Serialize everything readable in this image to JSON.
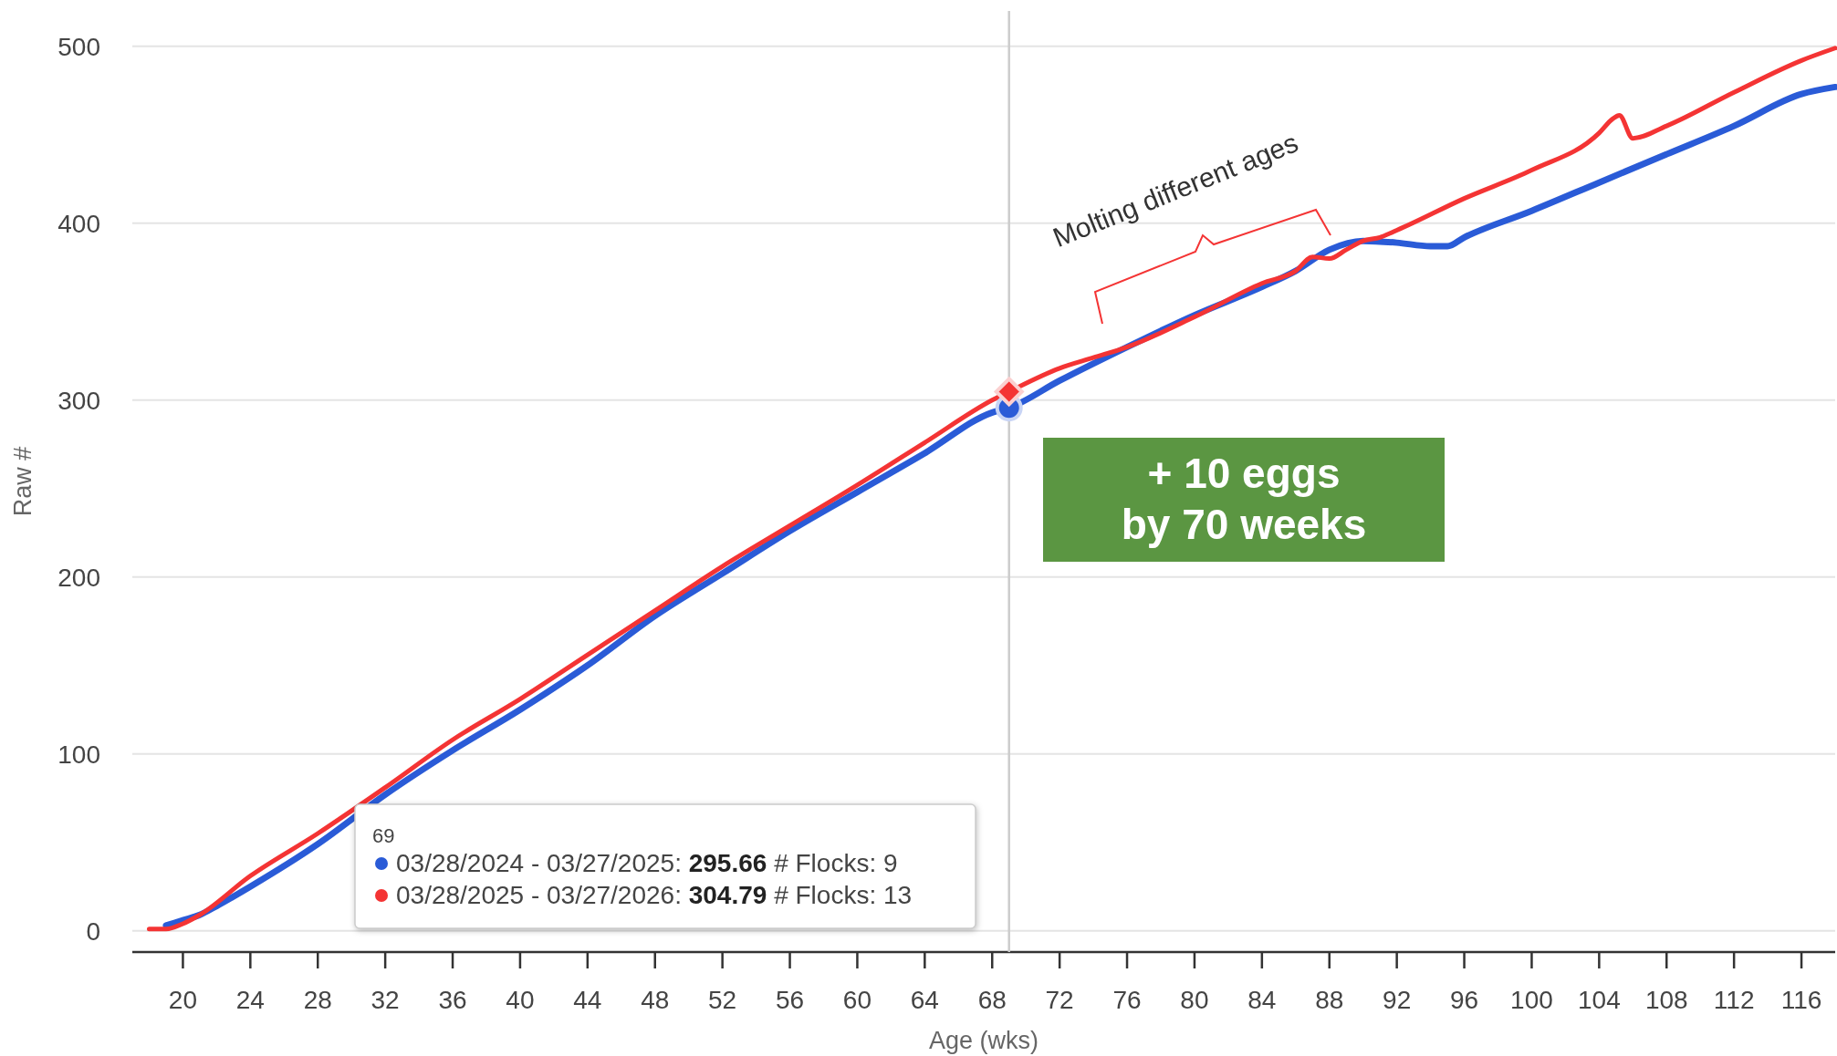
{
  "chart_data": {
    "type": "line",
    "xlabel": "Age (wks)",
    "ylabel": "Raw #",
    "xlim": [
      17,
      118
    ],
    "xticks": [
      20,
      24,
      28,
      32,
      36,
      40,
      44,
      48,
      52,
      56,
      60,
      64,
      68,
      72,
      76,
      80,
      84,
      88,
      92,
      96,
      100,
      104,
      108,
      112,
      116
    ],
    "ylim": [
      -12,
      520
    ],
    "yticks": [
      0,
      100,
      200,
      300,
      400,
      500
    ],
    "grid": "y",
    "line_style": "solid",
    "marker": "none",
    "series": [
      {
        "color": "#2a5bd7",
        "x": [
          19,
          20,
          21,
          22,
          24,
          28,
          32,
          36,
          40,
          44,
          48,
          52,
          56,
          60,
          64,
          68,
          69,
          72,
          76,
          80,
          84,
          86,
          88,
          90,
          92,
          94,
          95,
          96,
          100,
          104,
          108,
          112,
          116,
          118
        ],
        "values": [
          3,
          6,
          9,
          14,
          25,
          49,
          77,
          102,
          125,
          150,
          178,
          202,
          226,
          248,
          270,
          293,
          295.66,
          311,
          330,
          348,
          364,
          373,
          385,
          390,
          389,
          387,
          387,
          392,
          407,
          423,
          439,
          455,
          473,
          477
        ]
      },
      {
        "color": "#f43434",
        "x": [
          18,
          19,
          20,
          21,
          24,
          28,
          32,
          36,
          40,
          44,
          48,
          52,
          56,
          60,
          64,
          68,
          69,
          72,
          74,
          76,
          80,
          84,
          86,
          87,
          88,
          89,
          90,
          91,
          92,
          96,
          100,
          104,
          104.8,
          105.2,
          106,
          108,
          112,
          116,
          118
        ],
        "values": [
          1,
          1,
          4,
          9,
          31,
          55,
          81,
          108,
          131,
          156,
          181,
          206,
          229,
          252,
          276,
          300,
          304.79,
          318,
          324,
          330,
          347,
          366,
          373,
          381,
          380,
          385,
          390,
          392,
          396,
          414,
          430,
          451,
          459,
          461,
          448,
          455,
          474,
          492,
          499
        ]
      },
      {
        "type": "scatter",
        "marker": "circle",
        "color": "#2a5bd7",
        "x": [
          69
        ],
        "values": [
          295.66
        ]
      },
      {
        "type": "scatter",
        "marker": "diamond",
        "color": "#f43434",
        "x": [
          69
        ],
        "values": [
          304.79
        ]
      }
    ],
    "ref_lines": [
      {
        "axis": "x",
        "value": 69,
        "color": "#cccccc"
      }
    ],
    "annotations": [
      "Molting different ages",
      "+ 10 eggs\nby 70 weeks",
      "69",
      "03/28/2024 - 03/27/2025: 295.66 # Flocks: 9",
      "03/28/2025 - 03/27/2026: 304.79 # Flocks: 13"
    ]
  }
}
